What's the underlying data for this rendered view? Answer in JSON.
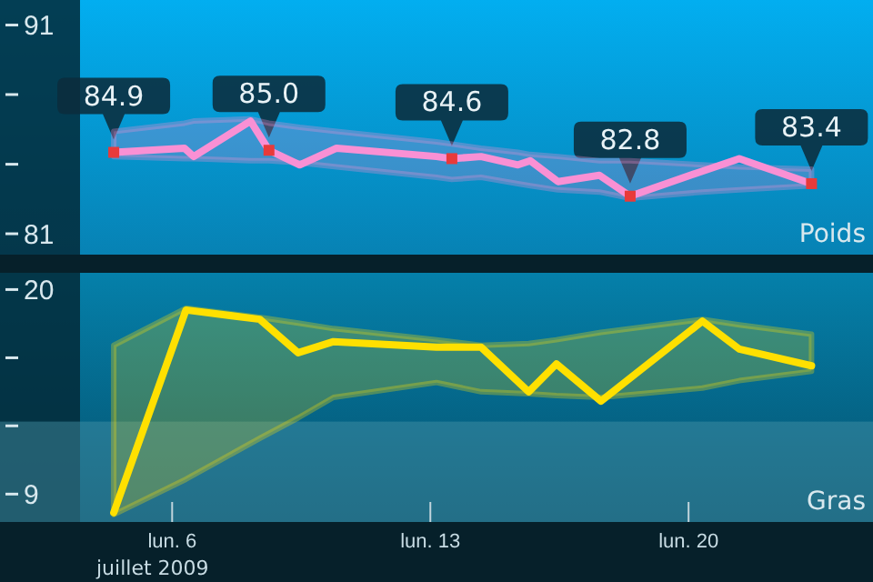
{
  "chart_data": [
    {
      "type": "line",
      "title": "Poids",
      "xlim": [
        "2009-07-01T08:00",
        "2009-07-25T00:00"
      ],
      "ylim": [
        80,
        92.2
      ],
      "yticks": [
        91,
        {
          "value": 87.67,
          "label": null
        },
        {
          "value": 84.33,
          "label": null
        },
        81
      ],
      "tick_labels": "y",
      "series": [
        {
          "color": "#f990d4",
          "x": [
            "2009-07-04T10:00",
            "2009-07-06T08:00",
            "2009-07-06T14:00",
            "2009-07-08T03:00",
            "2009-07-08T15:00",
            "2009-07-09T11:00",
            "2009-07-10T11:00",
            "2009-07-13T04:00",
            "2009-07-13T14:00",
            "2009-07-14T09:00",
            "2009-07-15T09:00",
            "2009-07-15T17:00",
            "2009-07-16T11:00",
            "2009-07-17T14:00",
            "2009-07-18T10:00",
            "2009-07-20T09:00",
            "2009-07-21T09:00",
            "2009-07-23T08:00"
          ],
          "values": [
            84.9,
            85.1,
            84.7,
            86.4,
            85.0,
            84.3,
            85.1,
            84.7,
            84.6,
            84.7,
            84.3,
            84.5,
            83.5,
            83.8,
            82.8,
            84.0,
            84.6,
            83.4
          ],
          "lower": [
            84.7,
            84.6,
            84.6,
            84.5,
            84.5,
            84.4,
            84.2,
            83.7,
            83.6,
            83.7,
            83.4,
            83.3,
            83.1,
            83.0,
            82.7,
            83.0,
            83.1,
            83.3
          ],
          "upper": [
            85.9,
            86.3,
            86.4,
            86.5,
            86.3,
            86.1,
            85.9,
            85.4,
            85.3,
            85.1,
            84.9,
            84.8,
            84.7,
            84.5,
            84.5,
            84.3,
            84.2,
            84.1
          ],
          "value_labels": [
            "84.9",
            null,
            null,
            null,
            "85.0",
            null,
            null,
            null,
            "84.6",
            null,
            null,
            null,
            null,
            null,
            "82.8",
            null,
            null,
            "83.4"
          ]
        }
      ]
    },
    {
      "type": "line",
      "title": "Gras",
      "xlabel": "juillet 2009",
      "xlim": [
        "2009-07-01T08:00",
        "2009-07-25T00:00"
      ],
      "xticks": [
        {
          "value": "2009-07-06",
          "label": "lun. 6"
        },
        {
          "value": "2009-07-13",
          "label": "lun. 13"
        },
        {
          "value": "2009-07-20",
          "label": "lun. 20"
        }
      ],
      "ylim": [
        7.5,
        20.9
      ],
      "yticks": [
        20,
        {
          "value": 16.33,
          "label": null
        },
        {
          "value": 12.67,
          "label": null
        },
        9
      ],
      "bands": [
        {
          "axis": "y",
          "from": 7.5,
          "to": 12.9,
          "color": "#4a95a8"
        }
      ],
      "series": [
        {
          "color": "#ffe000",
          "x": [
            "2009-07-04T10:00",
            "2009-07-06T09:00",
            "2009-07-08T09:00",
            "2009-07-09T10:00",
            "2009-07-10T09:00",
            "2009-07-13T04:00",
            "2009-07-14T09:00",
            "2009-07-15T16:00",
            "2009-07-16T10:00",
            "2009-07-17T15:00",
            "2009-07-20T09:00",
            "2009-07-21T09:00",
            "2009-07-23T08:00"
          ],
          "values": [
            8.0,
            18.9,
            18.4,
            16.6,
            17.2,
            16.9,
            16.9,
            14.5,
            16.0,
            14.0,
            18.3,
            16.8,
            15.9
          ],
          "lower": [
            7.9,
            9.8,
            12.0,
            13.1,
            14.2,
            15.0,
            14.5,
            14.4,
            14.3,
            14.2,
            14.7,
            15.1,
            15.6
          ],
          "upper": [
            17.0,
            19.0,
            18.5,
            18.2,
            17.9,
            17.3,
            17.0,
            17.1,
            17.3,
            17.7,
            18.4,
            18.1,
            17.6
          ]
        }
      ]
    }
  ]
}
